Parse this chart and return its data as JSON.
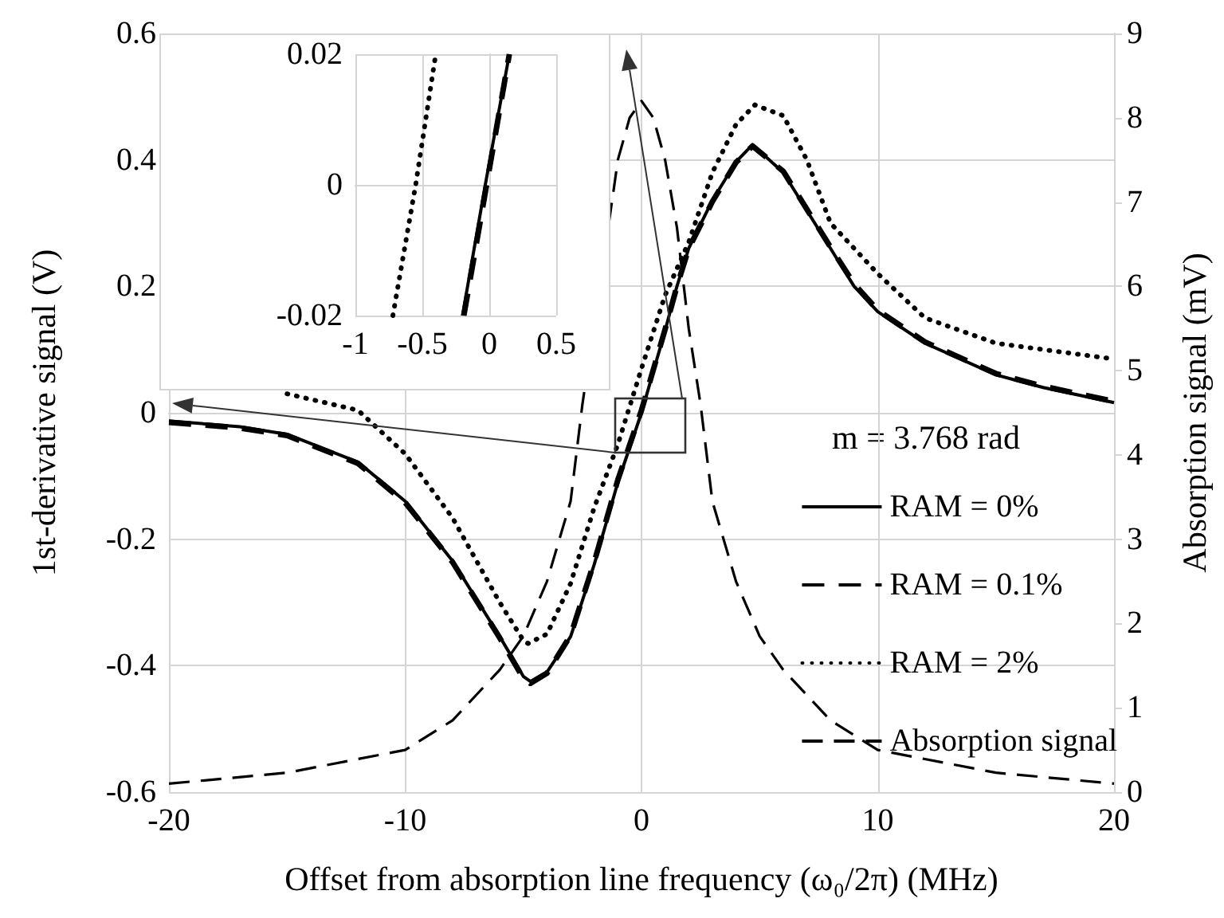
{
  "chart_data": [
    {
      "type": "line",
      "xlabel": "Offset from absorption line frequency (ω₀/2π) (MHz)",
      "ylabel": "1st-derivative signal (V)",
      "y2label": "Absorption signal (mV)",
      "legend_title": "m = 3.768 rad",
      "xlim": [
        -20,
        20
      ],
      "xticks": [
        -20,
        -10,
        0,
        10,
        20
      ],
      "ylim": [
        -0.6,
        0.6
      ],
      "yticks": [
        -0.6,
        -0.4,
        -0.2,
        0,
        0.2,
        0.4,
        0.6
      ],
      "y2lim": [
        0,
        9
      ],
      "y2ticks": [
        0,
        1,
        2,
        3,
        4,
        5,
        6,
        7,
        8,
        9
      ],
      "grid": true,
      "legend": "right",
      "marker": "none",
      "series": [
        {
          "name": "RAM = 0%",
          "color": "#000000",
          "line_style": "solid",
          "x": [
            -20,
            -17,
            -15,
            -12,
            -10,
            -8,
            -6,
            -5,
            -4.7,
            -4,
            -3,
            -2,
            -1,
            0,
            1,
            1.5,
            2,
            3,
            4,
            4.7,
            6,
            7,
            8,
            9,
            10,
            12,
            15,
            17,
            20
          ],
          "values": [
            -0.013,
            -0.022,
            -0.034,
            -0.078,
            -0.14,
            -0.234,
            -0.354,
            -0.417,
            -0.425,
            -0.41,
            -0.354,
            -0.24,
            -0.11,
            0,
            0.13,
            0.2,
            0.26,
            0.336,
            0.397,
            0.424,
            0.38,
            0.32,
            0.26,
            0.2,
            0.16,
            0.11,
            0.06,
            0.04,
            0.016
          ]
        },
        {
          "name": "RAM = 0.1%",
          "color": "#000000",
          "line_style": "dashed",
          "x": [
            -20,
            -17,
            -15,
            -12,
            -10,
            -8,
            -6,
            -5,
            -4.7,
            -4,
            -3,
            -2,
            -1,
            0,
            1,
            1.5,
            2,
            3,
            4,
            4.7,
            6,
            7,
            8,
            9,
            10,
            12,
            15,
            17,
            20
          ],
          "values": [
            -0.015,
            -0.024,
            -0.036,
            -0.08,
            -0.142,
            -0.236,
            -0.356,
            -0.42,
            -0.428,
            -0.412,
            -0.352,
            -0.236,
            -0.106,
            0.004,
            0.132,
            0.2,
            0.26,
            0.334,
            0.396,
            0.422,
            0.382,
            0.322,
            0.262,
            0.204,
            0.162,
            0.112,
            0.062,
            0.042,
            0.018
          ]
        },
        {
          "name": "RAM = 2%",
          "color": "#000000",
          "line_style": "dotted",
          "x": [
            -15,
            -12,
            -10,
            -8,
            -6,
            -5,
            -4.8,
            -4,
            -3,
            -2,
            -1,
            0,
            1,
            2,
            3,
            4,
            4.8,
            6,
            7,
            8,
            10,
            12,
            15,
            20
          ],
          "values": [
            0.03,
            0.004,
            -0.065,
            -0.166,
            -0.3,
            -0.36,
            -0.365,
            -0.35,
            -0.27,
            -0.15,
            -0.05,
            0.07,
            0.186,
            0.27,
            0.38,
            0.456,
            0.487,
            0.47,
            0.4,
            0.3,
            0.22,
            0.15,
            0.11,
            0.085
          ]
        },
        {
          "name": "Absorption signal",
          "color": "#000000",
          "line_style": "dashed",
          "axis": "y2",
          "x": [
            -20,
            -15,
            -10,
            -8,
            -6,
            -5,
            -4,
            -3,
            -2.5,
            -1.2,
            -1,
            -0.5,
            0,
            0.5,
            1,
            1.5,
            2,
            2.5,
            3,
            4,
            5,
            6,
            8,
            10,
            15,
            20
          ],
          "values": [
            0.1,
            0.23,
            0.5,
            0.85,
            1.45,
            1.85,
            2.5,
            3.45,
            4.6,
            7.1,
            7.5,
            8.0,
            8.2,
            8.0,
            7.5,
            6.7,
            5.5,
            4.6,
            3.45,
            2.5,
            1.85,
            1.45,
            0.85,
            0.5,
            0.23,
            0.1
          ]
        }
      ]
    },
    {
      "type": "line",
      "xlim": [
        -1,
        0.5
      ],
      "xticks": [
        -1,
        -0.5,
        0,
        0.5
      ],
      "ylim": [
        -0.02,
        0.02
      ],
      "yticks": [
        -0.02,
        0,
        0.02
      ],
      "grid": true,
      "marker": "none",
      "series": [
        {
          "color": "#000000",
          "line_style": "solid",
          "x": [
            -0.2,
            -0.03,
            0.15
          ],
          "values": [
            -0.02,
            0,
            0.02
          ]
        },
        {
          "color": "#000000",
          "line_style": "dashed",
          "x": [
            -0.19,
            -0.02,
            0.15
          ],
          "values": [
            -0.02,
            0,
            0.02
          ]
        },
        {
          "color": "#000000",
          "line_style": "dotted",
          "x": [
            -0.72,
            -0.55,
            -0.4
          ],
          "values": [
            -0.02,
            0,
            0.02
          ]
        }
      ]
    }
  ]
}
